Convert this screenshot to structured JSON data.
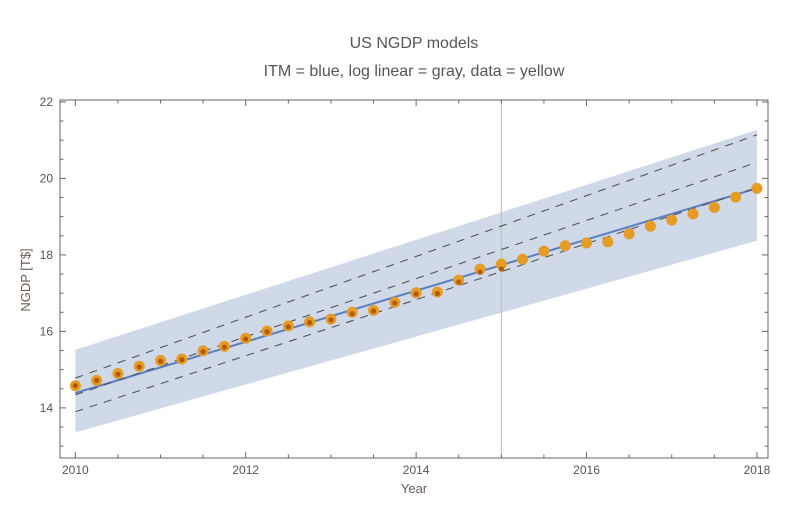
{
  "chart_data": {
    "type": "scatter",
    "title": "US NGDP models",
    "subtitle": "ITM = blue, log linear = gray, data = yellow",
    "xlabel": "Year",
    "ylabel": "NGDP [T$]",
    "xlim": [
      2009.82,
      2018.13
    ],
    "ylim": [
      12.69,
      22.05
    ],
    "xticks": [
      2010,
      2012,
      2014,
      2016,
      2018
    ],
    "yticks": [
      14,
      16,
      18,
      20,
      22
    ],
    "grid": false,
    "vertical_marker": 2015,
    "band": {
      "x": [
        2010,
        2018
      ],
      "lower": [
        13.36,
        18.37
      ],
      "upper": [
        15.52,
        21.27
      ],
      "color": "#cfd9e8"
    },
    "lines": [
      {
        "style": "solid",
        "color": "#5b7fbf",
        "x": [
          2010,
          2018
        ],
        "y": [
          14.39,
          19.74
        ]
      },
      {
        "style": "dashed",
        "color": "#555555",
        "x": [
          2010,
          2018
        ],
        "y": [
          14.78,
          21.14
        ]
      },
      {
        "style": "dashed",
        "color": "#555555",
        "x": [
          2010,
          2018
        ],
        "y": [
          14.34,
          20.42
        ]
      },
      {
        "style": "dashed",
        "color": "#555555",
        "x": [
          2010,
          2018
        ],
        "y": [
          13.9,
          19.76
        ]
      }
    ],
    "series": [
      {
        "color": "#e59c24",
        "x": [
          2010,
          2010.25,
          2010.5,
          2010.75,
          2011,
          2011.25,
          2011.5,
          2011.75,
          2012,
          2012.25,
          2012.5,
          2012.75,
          2013,
          2013.25,
          2013.5,
          2013.75,
          2014,
          2014.25,
          2014.5,
          2014.75,
          2015,
          2015.25,
          2015.5,
          2015.75,
          2016,
          2016.25,
          2016.5,
          2016.75,
          2017,
          2017.25,
          2017.5,
          2017.75,
          2018
        ],
        "y": [
          14.58,
          14.72,
          14.9,
          15.09,
          15.24,
          15.28,
          15.49,
          15.61,
          15.82,
          16.01,
          16.14,
          16.25,
          16.32,
          16.5,
          16.55,
          16.76,
          17.01,
          17.03,
          17.34,
          17.63,
          17.76,
          17.89,
          18.1,
          18.24,
          18.31,
          18.34,
          18.55,
          18.75,
          18.91,
          19.07,
          19.24,
          19.51,
          19.74
        ]
      },
      {
        "color": "#b35a00",
        "x": [
          2010,
          2010.25,
          2010.5,
          2010.75,
          2011,
          2011.25,
          2011.5,
          2011.75,
          2012,
          2012.25,
          2012.5,
          2012.75,
          2013,
          2013.25,
          2013.5,
          2013.75,
          2014,
          2014.25,
          2014.5,
          2014.75,
          2015
        ],
        "y": [
          14.58,
          14.72,
          14.88,
          15.07,
          15.22,
          15.26,
          15.47,
          15.59,
          15.8,
          15.99,
          16.12,
          16.23,
          16.3,
          16.46,
          16.53,
          16.74,
          16.98,
          16.99,
          17.29,
          17.55,
          17.63
        ]
      }
    ]
  }
}
